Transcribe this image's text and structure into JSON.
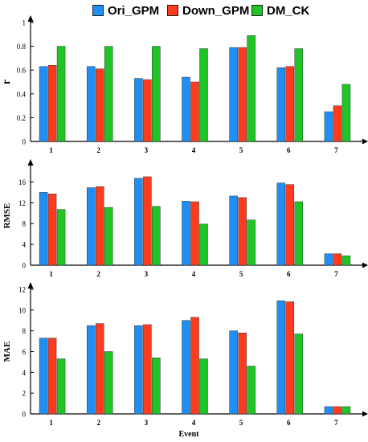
{
  "legend": {
    "items": [
      {
        "label": "Ori_GPM",
        "color": "#1f8ff5"
      },
      {
        "label": "Down_GPM",
        "color": "#ff3b1e"
      },
      {
        "label": "DM_CK",
        "color": "#1fc524"
      }
    ]
  },
  "chart_data": [
    {
      "type": "bar",
      "categories": [
        "1",
        "2",
        "3",
        "4",
        "5",
        "6",
        "7"
      ],
      "ylabel": "r",
      "xlabel": "",
      "ylim": [
        0,
        1
      ],
      "yticks": [
        "0",
        "0.2",
        "0.4",
        "0.6",
        "0.8",
        "1"
      ],
      "series": [
        {
          "name": "Ori_GPM",
          "color": "#1f8ff5",
          "values": [
            0.63,
            0.63,
            0.53,
            0.54,
            0.79,
            0.62,
            0.25
          ]
        },
        {
          "name": "Down_GPM",
          "color": "#ff3b1e",
          "values": [
            0.64,
            0.61,
            0.52,
            0.5,
            0.79,
            0.63,
            0.3
          ]
        },
        {
          "name": "DM_CK",
          "color": "#1fc524",
          "values": [
            0.8,
            0.8,
            0.8,
            0.78,
            0.89,
            0.78,
            0.48
          ]
        }
      ]
    },
    {
      "type": "bar",
      "categories": [
        "1",
        "2",
        "3",
        "4",
        "5",
        "6",
        "7"
      ],
      "ylabel": "RMSE",
      "xlabel": "",
      "ylim": [
        0,
        19
      ],
      "yticks": [
        "0",
        "4",
        "8",
        "12",
        "16"
      ],
      "series": [
        {
          "name": "Ori_GPM",
          "color": "#1f8ff5",
          "values": [
            14.0,
            14.9,
            16.7,
            12.3,
            13.3,
            15.8,
            2.2
          ]
        },
        {
          "name": "Down_GPM",
          "color": "#ff3b1e",
          "values": [
            13.7,
            15.1,
            17.0,
            12.2,
            13.0,
            15.5,
            2.2
          ]
        },
        {
          "name": "DM_CK",
          "color": "#1fc524",
          "values": [
            10.7,
            11.1,
            11.3,
            7.9,
            8.7,
            12.2,
            1.8
          ]
        }
      ]
    },
    {
      "type": "bar",
      "categories": [
        "1",
        "2",
        "3",
        "4",
        "5",
        "6",
        "7"
      ],
      "ylabel": "MAE",
      "xlabel": "Event",
      "ylim": [
        0,
        12
      ],
      "yticks": [
        "0",
        "2",
        "4",
        "6",
        "8",
        "10",
        "12"
      ],
      "series": [
        {
          "name": "Ori_GPM",
          "color": "#1f8ff5",
          "values": [
            7.3,
            8.5,
            8.5,
            9.0,
            8.0,
            10.9,
            0.7
          ]
        },
        {
          "name": "Down_GPM",
          "color": "#ff3b1e",
          "values": [
            7.3,
            8.7,
            8.6,
            9.3,
            7.8,
            10.8,
            0.7
          ]
        },
        {
          "name": "DM_CK",
          "color": "#1fc524",
          "values": [
            5.3,
            6.0,
            5.4,
            5.3,
            4.6,
            7.7,
            0.7
          ]
        }
      ]
    }
  ]
}
